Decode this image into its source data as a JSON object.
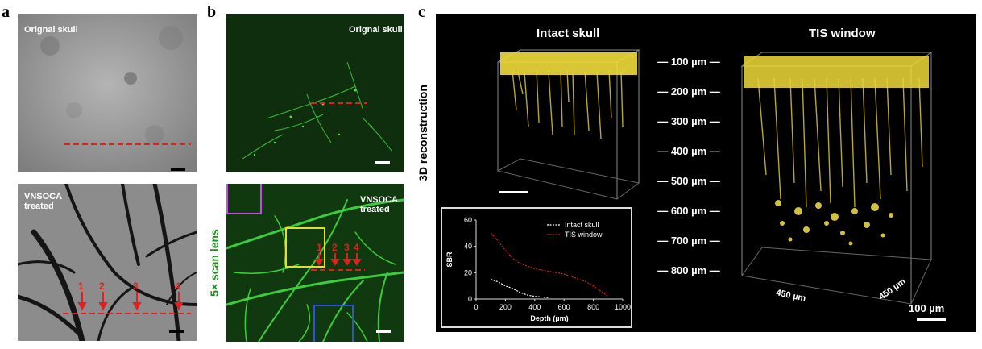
{
  "labels": {
    "a": "a",
    "b": "b",
    "c": "c"
  },
  "panel_a": {
    "top_label": "Orignal skull",
    "bottom_label_1": "VNSOCA",
    "bottom_label_2": "treated",
    "markers": [
      "1",
      "2",
      "3",
      "4"
    ]
  },
  "panel_b": {
    "top_label": "Orignal skull",
    "bottom_label_1": "VNSOCA",
    "bottom_label_2": "treated",
    "side_label": "5× scan lens",
    "markers": [
      "1",
      "2",
      "3",
      "4"
    ]
  },
  "panel_c": {
    "left_title": "Intact skull",
    "right_title": "TIS window",
    "side_label": "3D reconstruction",
    "depths": [
      "100 µm",
      "200 µm",
      "300 µm",
      "400 µm",
      "500 µm",
      "600 µm",
      "700 µm",
      "800 µm"
    ],
    "axis_x": "450 µm",
    "axis_y": "450 µm",
    "scale": "100 µm"
  },
  "chart_data": {
    "type": "line",
    "xlabel": "Depth (µm)",
    "ylabel": "SBR",
    "xlim": [
      0,
      1000
    ],
    "ylim": [
      0,
      60
    ],
    "xticks": [
      "0",
      "200",
      "400",
      "600",
      "800",
      "1000"
    ],
    "yticks": [
      "0",
      "20",
      "40",
      "60"
    ],
    "legend_position": "top-right",
    "series": [
      {
        "name": "Intact skull",
        "color": "#ffffff",
        "x": [
          100,
          150,
          200,
          250,
          300,
          350,
          400,
          450,
          500
        ],
        "y": [
          15,
          13,
          10,
          8,
          5,
          3,
          2,
          1.5,
          1
        ]
      },
      {
        "name": "TIS window",
        "color": "#d02020",
        "x": [
          100,
          150,
          200,
          250,
          300,
          350,
          400,
          450,
          500,
          550,
          600,
          650,
          700,
          750,
          800,
          850,
          900
        ],
        "y": [
          50,
          44,
          37,
          31,
          27,
          25,
          23,
          22,
          21,
          20,
          19,
          17,
          15,
          13,
          10,
          6,
          2
        ]
      }
    ]
  }
}
